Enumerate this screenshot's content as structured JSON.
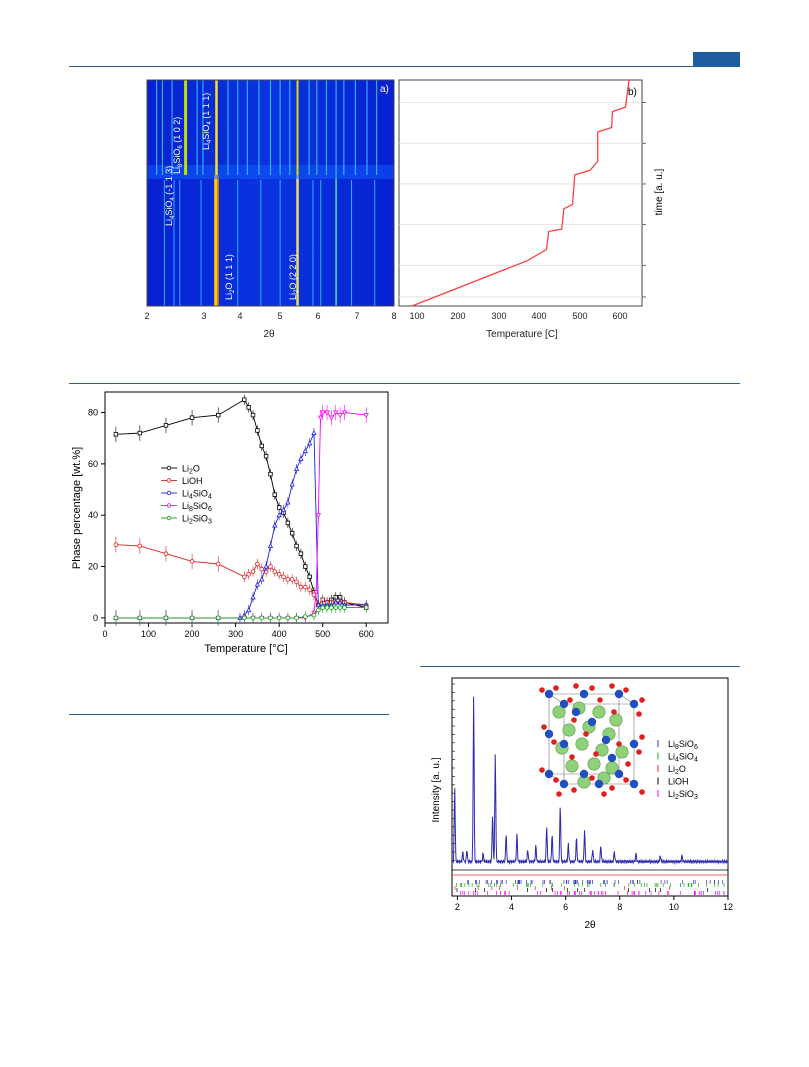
{
  "colors": {
    "rule": "#2f5f8f",
    "heat_bg": "#0a2fd8",
    "li2o": "#000000",
    "lioh": "#e02020",
    "li4sio4": "#2020e0",
    "li8sio6": "#ff00ff",
    "li2sio3": "#10a010"
  },
  "figure_top": {
    "panel_a_label": "a)",
    "panel_b_label": "b)",
    "a_xlabel": "2θ",
    "a_xticks": [
      "2",
      "3",
      "4",
      "5",
      "6",
      "7",
      "8"
    ],
    "b_xlabel": "Temperature [C]",
    "b_xticks": [
      "100",
      "200",
      "300",
      "400",
      "500",
      "600"
    ],
    "b_ylabel": "time [a. u.]",
    "annotations": {
      "li8_102_a": "Li",
      "li8_102_b": "8",
      "li8_102_c": "SiO",
      "li8_102_d": "6",
      "li8_102_e": " (1 0 2)",
      "li4_111_a": "Li",
      "li4_111_b": "4",
      "li4_111_c": "SiO",
      "li4_111_d": "4",
      "li4_111_e": " (1 1 1)",
      "li4_m113_a": "Li",
      "li4_m113_b": "4",
      "li4_m113_c": "SiO",
      "li4_m113_d": "4",
      "li4_m113_e": " (-1 1 3)",
      "li2o_111_a": "Li",
      "li2o_111_b": "2",
      "li2o_111_c": "O (1 1 1)",
      "li2o_220_a": "Li",
      "li2o_220_b": "2",
      "li2o_220_c": "O (2 2 0)"
    },
    "temperature_profile": {
      "x_range": [
        80,
        640
      ],
      "points": [
        {
          "t": 110,
          "time": 0.0
        },
        {
          "t": 375,
          "time": 0.2
        },
        {
          "t": 420,
          "time": 0.25
        },
        {
          "t": 425,
          "time": 0.33
        },
        {
          "t": 455,
          "time": 0.34
        },
        {
          "t": 460,
          "time": 0.43
        },
        {
          "t": 480,
          "time": 0.45
        },
        {
          "t": 485,
          "time": 0.58
        },
        {
          "t": 520,
          "time": 0.6
        },
        {
          "t": 538,
          "time": 0.64
        },
        {
          "t": 538,
          "time": 0.77
        },
        {
          "t": 570,
          "time": 0.79
        },
        {
          "t": 572,
          "time": 0.86
        },
        {
          "t": 602,
          "time": 0.88
        },
        {
          "t": 610,
          "time": 1.0
        }
      ]
    }
  },
  "chart_data": [
    {
      "type": "line",
      "xlabel": "Temperature [°C]",
      "ylabel": "Phase percentage [wt.%]",
      "xlim": [
        0,
        650
      ],
      "ylim": [
        -2,
        88
      ],
      "xticks": [
        "0",
        "100",
        "200",
        "300",
        "400",
        "500",
        "600"
      ],
      "yticks": [
        "0",
        "20",
        "40",
        "60",
        "80"
      ],
      "legend_position": "center-left",
      "series": [
        {
          "name": "Li",
          "sub": "2",
          "suffix": "O",
          "color": "#000000",
          "x": [
            25,
            80,
            140,
            200,
            260,
            320,
            330,
            340,
            350,
            360,
            370,
            380,
            390,
            400,
            410,
            420,
            430,
            440,
            450,
            460,
            470,
            480,
            490,
            500,
            510,
            520,
            530,
            540,
            550,
            600
          ],
          "y": [
            71.5,
            72,
            75,
            78,
            79,
            85,
            82,
            79,
            73,
            67,
            63,
            56,
            48,
            43,
            41,
            37,
            33,
            28,
            25,
            20,
            16,
            10,
            5,
            7,
            6,
            7,
            8,
            8,
            6,
            4
          ]
        },
        {
          "name": "LiOH",
          "sub": "",
          "suffix": "",
          "color": "#e02020",
          "x": [
            25,
            80,
            140,
            200,
            260,
            320,
            330,
            340,
            350,
            360,
            370,
            380,
            390,
            400,
            410,
            420,
            430,
            440,
            450,
            460,
            470,
            480,
            490,
            500,
            510,
            520,
            530,
            540,
            550,
            600
          ],
          "y": [
            28.5,
            28,
            25,
            22,
            21,
            16,
            17,
            18,
            21,
            19,
            18,
            20,
            18,
            17,
            16,
            15,
            15,
            14,
            12,
            12,
            11,
            9,
            5,
            7,
            6,
            6,
            6,
            6,
            6,
            5
          ]
        },
        {
          "name": "Li",
          "sub": "4",
          "suffix": "SiO",
          "sub2": "4",
          "color": "#2020e0",
          "x": [
            25,
            80,
            140,
            200,
            260,
            310,
            320,
            330,
            340,
            350,
            360,
            370,
            380,
            390,
            400,
            410,
            420,
            430,
            440,
            450,
            460,
            470,
            480,
            490,
            500,
            510,
            520,
            530,
            540,
            550,
            600
          ],
          "y": [
            0,
            0,
            0,
            0,
            0,
            0,
            1,
            3,
            8,
            13,
            15,
            20,
            28,
            36,
            40,
            42,
            45,
            52,
            58,
            62,
            65,
            68,
            72,
            5,
            5,
            5,
            5,
            6,
            6,
            5,
            5
          ]
        },
        {
          "name": "Li",
          "sub": "8",
          "suffix": "SiO",
          "sub2": "6",
          "color": "#ff00ff",
          "x": [
            25,
            80,
            140,
            200,
            260,
            320,
            340,
            360,
            380,
            400,
            420,
            440,
            460,
            480,
            485,
            490,
            495,
            500,
            510,
            520,
            530,
            540,
            550,
            600
          ],
          "y": [
            0,
            0,
            0,
            0,
            0,
            0,
            0,
            0,
            0,
            0,
            0,
            0,
            0,
            2,
            10,
            40,
            78,
            80,
            80,
            78,
            80,
            79,
            80,
            79
          ]
        },
        {
          "name": "Li",
          "sub": "2",
          "suffix": "SiO",
          "sub2": "3",
          "color": "#10a010",
          "x": [
            25,
            80,
            140,
            200,
            260,
            320,
            340,
            360,
            380,
            400,
            420,
            440,
            460,
            480,
            490,
            500,
            510,
            520,
            530,
            540,
            550,
            600
          ],
          "y": [
            0,
            0,
            0,
            0,
            0,
            0,
            0,
            0,
            0,
            0,
            0,
            0,
            0.5,
            1,
            3,
            4,
            4,
            4,
            4,
            4,
            4,
            4
          ]
        }
      ]
    },
    {
      "type": "line",
      "xlabel": "2θ",
      "ylabel": "Intensity [a. u.]",
      "xlim": [
        1.8,
        12
      ],
      "xticks": [
        "2",
        "4",
        "6",
        "8",
        "10",
        "12"
      ],
      "legend": [
        {
          "name": "Li",
          "sub": "8",
          "suffix": "SiO",
          "sub2": "6",
          "color": "#3030d0"
        },
        {
          "name": "Li",
          "sub": "4",
          "suffix": "SiO",
          "sub2": "4",
          "color": "#20b020"
        },
        {
          "name": "Li",
          "sub": "2",
          "suffix": "O",
          "color": "#e03030"
        },
        {
          "name": "LiOH",
          "sub": "",
          "suffix": "",
          "color": "#000000"
        },
        {
          "name": "Li",
          "sub": "2",
          "suffix": "SiO",
          "sub2": "3",
          "color": "#ff00ff"
        }
      ],
      "peaks": [
        {
          "x": 1.9,
          "h": 0.37
        },
        {
          "x": 2.2,
          "h": 0.05
        },
        {
          "x": 2.35,
          "h": 0.06
        },
        {
          "x": 2.6,
          "h": 0.83
        },
        {
          "x": 2.95,
          "h": 0.04
        },
        {
          "x": 3.3,
          "h": 0.24
        },
        {
          "x": 3.4,
          "h": 0.54
        },
        {
          "x": 3.8,
          "h": 0.14
        },
        {
          "x": 4.2,
          "h": 0.14
        },
        {
          "x": 4.6,
          "h": 0.06
        },
        {
          "x": 4.9,
          "h": 0.08
        },
        {
          "x": 5.3,
          "h": 0.18
        },
        {
          "x": 5.5,
          "h": 0.14
        },
        {
          "x": 5.8,
          "h": 0.28
        },
        {
          "x": 6.1,
          "h": 0.09
        },
        {
          "x": 6.4,
          "h": 0.12
        },
        {
          "x": 6.7,
          "h": 0.16
        },
        {
          "x": 7.0,
          "h": 0.06
        },
        {
          "x": 7.3,
          "h": 0.08
        },
        {
          "x": 7.8,
          "h": 0.05
        },
        {
          "x": 8.6,
          "h": 0.04
        },
        {
          "x": 9.5,
          "h": 0.03
        },
        {
          "x": 10.3,
          "h": 0.03
        }
      ]
    }
  ]
}
